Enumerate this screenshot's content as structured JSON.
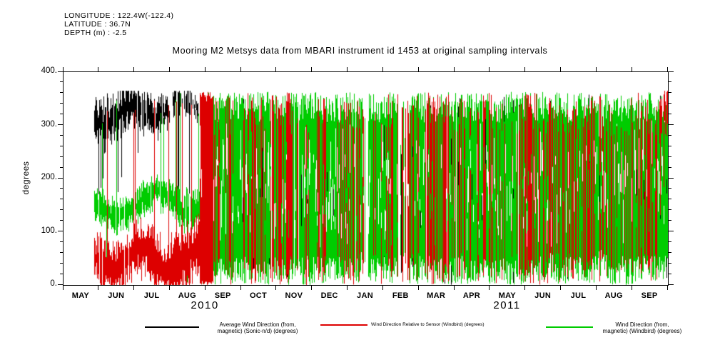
{
  "header": {
    "longitude": "LONGITUDE : 122.4W(-122.4)",
    "latitude": "LATITUDE : 36.7N",
    "depth": "DEPTH (m) : -2.5"
  },
  "title": "Mooring M2 Metsys data from MBARI instrument id 1453 at original sampling intervals",
  "chart_data": {
    "type": "line",
    "title": "Mooring M2 Metsys data from MBARI instrument id 1453 at original sampling intervals",
    "ylabel": "degrees",
    "ylim": [
      0,
      400
    ],
    "yticks": [
      0,
      100,
      200,
      300,
      400
    ],
    "ytick_labels": [
      "0.",
      "100.",
      "200.",
      "300.",
      "400."
    ],
    "x_tick_labels": [
      "MAY",
      "JUN",
      "JUL",
      "AUG",
      "SEP",
      "OCT",
      "NOV",
      "DEC",
      "JAN",
      "FEB",
      "MAR",
      "APR",
      "MAY",
      "JUN",
      "JUL",
      "AUG",
      "SEP"
    ],
    "x_years": [
      {
        "label": "2010",
        "center_frac": 0.235
      },
      {
        "label": "2011",
        "center_frac": 0.735
      }
    ],
    "y_data_range": [
      0,
      360
    ],
    "time_range": "mid-May 2010 through mid-September 2011",
    "grid": false,
    "legend_position": "bottom",
    "series": [
      {
        "key": "sonic",
        "name": "Average Wind Direction (from, magnetic) (Sonic-n/d) (degrees)",
        "color": "#000000"
      },
      {
        "key": "relative",
        "name": "Wind Direction Relative to Sensor (Windbird) (degrees)",
        "color": "#dd0000"
      },
      {
        "key": "windbird",
        "name": "Wind Direction (from, magnetic) (Windbird) (degrees)",
        "color": "#00cc00"
      }
    ],
    "render": {
      "seed": 1453,
      "t_start": 0.05,
      "draw_order": [
        "sonic",
        "windbird",
        "relative"
      ],
      "segments": {
        "sonic": [
          {
            "t0": 0.05,
            "t1": 0.125,
            "d": 0.95,
            "mode": "band",
            "c": 320,
            "camp": 18,
            "cfreq": 60,
            "cph": 1.0,
            "cn": 40,
            "hw0": 12,
            "hw1": 45,
            "spike_p": 0.18,
            "slo0": 170,
            "slo1": 260,
            "shi0": 340,
            "shi1": 363
          },
          {
            "t0": 0.125,
            "t1": 0.175,
            "d": 0.85,
            "mode": "band",
            "c": 330,
            "camp": 12,
            "cfreq": 60,
            "cph": 2.0,
            "cn": 30,
            "hw0": 10,
            "hw1": 35,
            "spike_p": 0.1,
            "slo0": 200,
            "slo1": 280,
            "shi0": 345,
            "shi1": 363
          },
          {
            "t0": 0.175,
            "t1": 0.225,
            "d": 0.6,
            "mode": "band",
            "c": 335,
            "camp": 10,
            "cfreq": 60,
            "cph": 2.8,
            "cn": 25,
            "hw0": 8,
            "hw1": 28,
            "spike_p": 0.08,
            "slo0": 150,
            "slo1": 260,
            "shi0": 350,
            "shi1": 363
          },
          {
            "t0": 0.225,
            "t1": 1.0,
            "d": 0.1,
            "mode": "full",
            "lo0": 0,
            "lo1": 120,
            "hi0": 240,
            "hi1": 362,
            "split_p": 0.3
          }
        ],
        "relative": [
          {
            "t0": 0.05,
            "t1": 0.115,
            "d": 0.9,
            "mode": "band",
            "c": 48,
            "camp": 18,
            "cfreq": 55,
            "cph": 0.3,
            "cn": 30,
            "hw0": 15,
            "hw1": 48,
            "spike_p": 0.1,
            "shi0": 300,
            "shi1": 362,
            "slo0": 0,
            "slo1": 5
          },
          {
            "t0": 0.115,
            "t1": 0.175,
            "d": 0.95,
            "mode": "band",
            "c": 52,
            "camp": 20,
            "cfreq": 55,
            "cph": 1.3,
            "cn": 30,
            "hw0": 18,
            "hw1": 50,
            "spike_p": 0.14,
            "shi0": 320,
            "shi1": 362,
            "slo0": 0,
            "slo1": 5
          },
          {
            "t0": 0.175,
            "t1": 0.225,
            "d": 1.0,
            "mode": "band",
            "c": 60,
            "camp": 25,
            "cfreq": 50,
            "cph": 2.2,
            "cn": 40,
            "hw0": 25,
            "hw1": 60,
            "spike_p": 0.3,
            "shi0": 330,
            "shi1": 363,
            "slo0": 0,
            "slo1": 5
          },
          {
            "t0": 0.225,
            "t1": 0.247,
            "d": 1.0,
            "mode": "full",
            "lo0": 0,
            "lo1": 8,
            "hi0": 345,
            "hi1": 363,
            "split_p": 0.05
          },
          {
            "t0": 0.247,
            "t1": 0.303,
            "d": 0.32,
            "mode": "full",
            "lo0": 0,
            "lo1": 60,
            "hi0": 280,
            "hi1": 362,
            "split_p": 0.35
          },
          {
            "t0": 0.303,
            "t1": 0.33,
            "d": 0.62,
            "mode": "full",
            "lo0": 0,
            "lo1": 40,
            "hi0": 300,
            "hi1": 362,
            "split_p": 0.3
          },
          {
            "t0": 0.33,
            "t1": 0.345,
            "d": 0.3,
            "mode": "full",
            "lo0": 0,
            "lo1": 60,
            "hi0": 280,
            "hi1": 362,
            "split_p": 0.35
          },
          {
            "t0": 0.345,
            "t1": 0.375,
            "d": 0.65,
            "mode": "full",
            "lo0": 0,
            "lo1": 40,
            "hi0": 300,
            "hi1": 362,
            "split_p": 0.3
          },
          {
            "t0": 0.375,
            "t1": 0.46,
            "d": 0.3,
            "mode": "full",
            "lo0": 0,
            "lo1": 60,
            "hi0": 280,
            "hi1": 362,
            "split_p": 0.35
          },
          {
            "t0": 0.46,
            "t1": 0.485,
            "d": 0.5,
            "mode": "full",
            "lo0": 0,
            "lo1": 50,
            "hi0": 290,
            "hi1": 362,
            "split_p": 0.3
          },
          {
            "t0": 0.485,
            "t1": 0.6,
            "d": 0.27,
            "mode": "full",
            "lo0": 0,
            "lo1": 60,
            "hi0": 280,
            "hi1": 362,
            "split_p": 0.35
          },
          {
            "t0": 0.6,
            "t1": 0.635,
            "d": 0.52,
            "mode": "full",
            "lo0": 0,
            "lo1": 50,
            "hi0": 290,
            "hi1": 362,
            "split_p": 0.3
          },
          {
            "t0": 0.635,
            "t1": 0.69,
            "d": 0.3,
            "mode": "full",
            "lo0": 0,
            "lo1": 60,
            "hi0": 280,
            "hi1": 362,
            "split_p": 0.35
          },
          {
            "t0": 0.69,
            "t1": 0.725,
            "d": 0.55,
            "mode": "full",
            "lo0": 0,
            "lo1": 50,
            "hi0": 290,
            "hi1": 362,
            "split_p": 0.3
          },
          {
            "t0": 0.725,
            "t1": 0.75,
            "d": 0.32,
            "mode": "full",
            "lo0": 0,
            "lo1": 60,
            "hi0": 280,
            "hi1": 362,
            "split_p": 0.35
          },
          {
            "t0": 0.75,
            "t1": 0.785,
            "d": 0.52,
            "mode": "full",
            "lo0": 0,
            "lo1": 50,
            "hi0": 290,
            "hi1": 362,
            "split_p": 0.3
          },
          {
            "t0": 0.785,
            "t1": 0.85,
            "d": 0.35,
            "mode": "full",
            "lo0": 0,
            "lo1": 60,
            "hi0": 280,
            "hi1": 362,
            "split_p": 0.35
          },
          {
            "t0": 0.85,
            "t1": 0.875,
            "d": 0.52,
            "mode": "full",
            "lo0": 0,
            "lo1": 50,
            "hi0": 290,
            "hi1": 362,
            "split_p": 0.3
          },
          {
            "t0": 0.875,
            "t1": 0.985,
            "d": 0.32,
            "mode": "full",
            "lo0": 0,
            "lo1": 60,
            "hi0": 280,
            "hi1": 362,
            "split_p": 0.35
          },
          {
            "t0": 0.985,
            "t1": 1.0,
            "d": 0.85,
            "mode": "band",
            "c": 320,
            "camp": 5,
            "cfreq": 40,
            "cph": 0,
            "cn": 40,
            "hw0": 20,
            "hw1": 45,
            "spike_p": 0.2,
            "slo0": 100,
            "slo1": 200,
            "shi0": 350,
            "shi1": 363
          }
        ],
        "windbird": [
          {
            "t0": 0.05,
            "t1": 0.19,
            "d": 0.95,
            "mode": "band",
            "c": 152,
            "camp": 22,
            "cfreq": 45,
            "cph": 0.8,
            "cn": 18,
            "hw0": 10,
            "hw1": 32,
            "spike_p": 0.05,
            "shi0": 300,
            "shi1": 360,
            "slo0": 20,
            "slo1": 60
          },
          {
            "t0": 0.19,
            "t1": 0.225,
            "d": 0.95,
            "mode": "band",
            "c": 160,
            "camp": 25,
            "cfreq": 45,
            "cph": 1.8,
            "cn": 25,
            "hw0": 12,
            "hw1": 40,
            "spike_p": 0.14,
            "shi0": 320,
            "shi1": 362,
            "slo0": 0,
            "slo1": 30
          },
          {
            "t0": 0.225,
            "t1": 0.247,
            "d": 0.55,
            "mode": "full",
            "lo0": 0,
            "lo1": 40,
            "hi0": 300,
            "hi1": 362,
            "split_p": 0.4
          },
          {
            "t0": 0.247,
            "t1": 0.492,
            "d": 0.97,
            "mode": "full",
            "lo0": 0,
            "lo1": 55,
            "hi0": 305,
            "hi1": 363,
            "split_p": 0.5
          },
          {
            "t0": 0.492,
            "t1": 0.503,
            "d": 0.55,
            "mode": "full",
            "lo0": 0,
            "lo1": 70,
            "hi0": 280,
            "hi1": 360,
            "split_p": 0.5
          },
          {
            "t0": 0.503,
            "t1": 0.553,
            "d": 0.97,
            "mode": "full",
            "lo0": 0,
            "lo1": 55,
            "hi0": 305,
            "hi1": 363,
            "split_p": 0.5
          },
          {
            "t0": 0.553,
            "t1": 0.572,
            "d": 0.3,
            "mode": "full",
            "lo0": 0,
            "lo1": 90,
            "hi0": 250,
            "hi1": 360,
            "split_p": 0.5
          },
          {
            "t0": 0.572,
            "t1": 0.885,
            "d": 0.97,
            "mode": "full",
            "lo0": 0,
            "lo1": 55,
            "hi0": 305,
            "hi1": 363,
            "split_p": 0.5
          },
          {
            "t0": 0.885,
            "t1": 0.898,
            "d": 0.5,
            "mode": "full",
            "lo0": 0,
            "lo1": 80,
            "hi0": 270,
            "hi1": 360,
            "split_p": 0.5
          },
          {
            "t0": 0.898,
            "t1": 1.0,
            "d": 0.95,
            "mode": "full",
            "lo0": 0,
            "lo1": 55,
            "hi0": 305,
            "hi1": 363,
            "split_p": 0.5
          }
        ]
      }
    }
  },
  "legend": {
    "items": [
      {
        "series": "sonic",
        "lines": [
          "Average Wind Direction (from,",
          "magnetic) (Sonic-n/d) (degrees)"
        ]
      },
      {
        "series": "relative",
        "lines": [
          "Wind Direction Relative to Sensor (Windbird) (degrees)"
        ]
      },
      {
        "series": "windbird",
        "lines": [
          "Wind Direction (from,",
          "magnetic) (Windbird) (degrees)"
        ]
      }
    ]
  }
}
